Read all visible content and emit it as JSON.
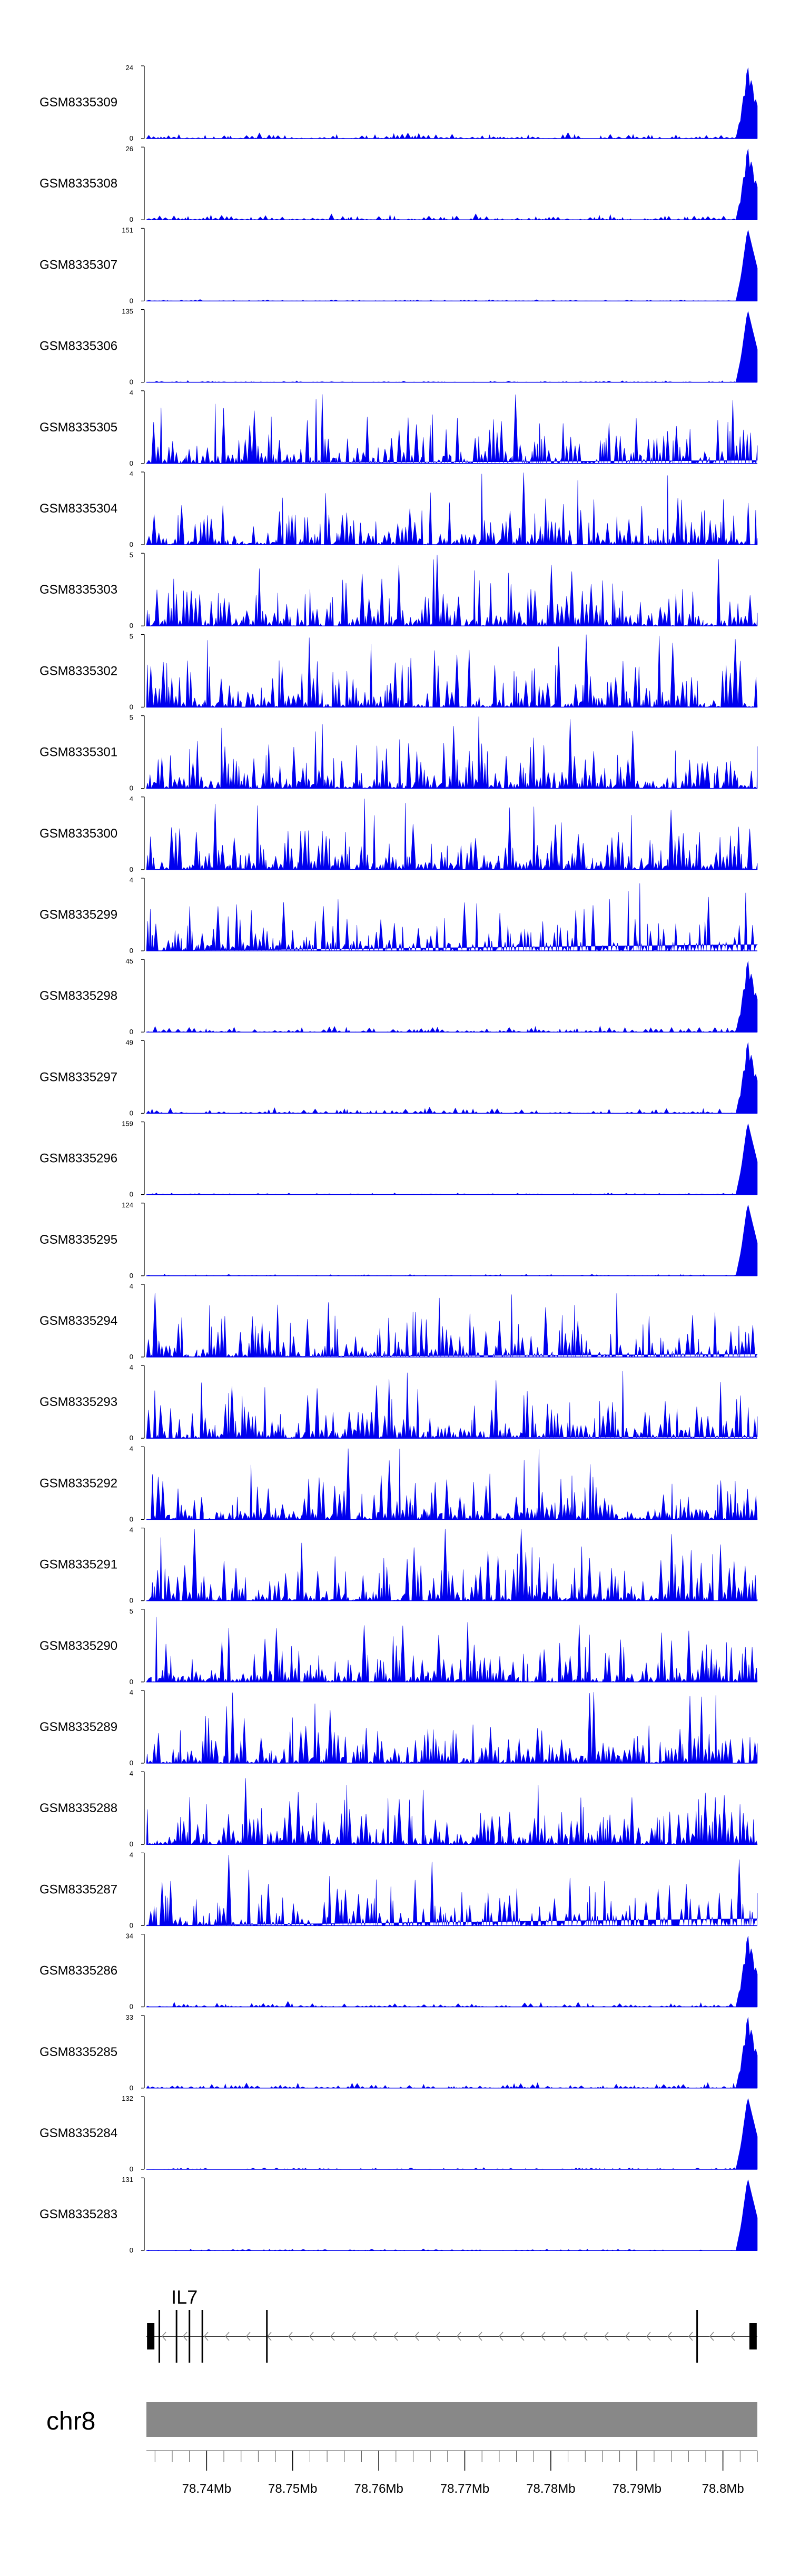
{
  "chart_data": {
    "type": "area",
    "chromosome": "chr8",
    "x_range_mb": [
      78.733,
      78.804
    ],
    "x_tick_labels": [
      "78.74Mb",
      "78.75Mb",
      "78.76Mb",
      "78.77Mb",
      "78.78Mb",
      "78.79Mb",
      "78.8Mb"
    ],
    "x_tick_values_mb": [
      78.74,
      78.75,
      78.76,
      78.77,
      78.78,
      78.79,
      78.8
    ],
    "minor_tick_step_mb": 0.002,
    "tracks": [
      {
        "name": "GSM8335309",
        "ymax_label": "24",
        "ymin_label": "0",
        "pattern": "low-peak",
        "peak_start_mb": 78.8015
      },
      {
        "name": "GSM8335308",
        "ymax_label": "26",
        "ymin_label": "0",
        "pattern": "low-peak",
        "peak_start_mb": 78.8015
      },
      {
        "name": "GSM8335307",
        "ymax_label": "151",
        "ymin_label": "0",
        "pattern": "flat-peak",
        "peak_start_mb": 78.8015
      },
      {
        "name": "GSM8335306",
        "ymax_label": "135",
        "ymin_label": "0",
        "pattern": "flat-peak",
        "peak_start_mb": 78.8015
      },
      {
        "name": "GSM8335305",
        "ymax_label": "4",
        "ymin_label": "0",
        "pattern": "dense"
      },
      {
        "name": "GSM8335304",
        "ymax_label": "4",
        "ymin_label": "0",
        "pattern": "dense"
      },
      {
        "name": "GSM8335303",
        "ymax_label": "5",
        "ymin_label": "0",
        "pattern": "dense"
      },
      {
        "name": "GSM8335302",
        "ymax_label": "5",
        "ymin_label": "0",
        "pattern": "dense"
      },
      {
        "name": "GSM8335301",
        "ymax_label": "5",
        "ymin_label": "0",
        "pattern": "dense"
      },
      {
        "name": "GSM8335300",
        "ymax_label": "4",
        "ymin_label": "0",
        "pattern": "dense"
      },
      {
        "name": "GSM8335299",
        "ymax_label": "4",
        "ymin_label": "0",
        "pattern": "dense"
      },
      {
        "name": "GSM8335298",
        "ymax_label": "45",
        "ymin_label": "0",
        "pattern": "low-peak",
        "peak_start_mb": 78.8015
      },
      {
        "name": "GSM8335297",
        "ymax_label": "49",
        "ymin_label": "0",
        "pattern": "low-peak",
        "peak_start_mb": 78.8015
      },
      {
        "name": "GSM8335296",
        "ymax_label": "159",
        "ymin_label": "0",
        "pattern": "flat-peak",
        "peak_start_mb": 78.8015
      },
      {
        "name": "GSM8335295",
        "ymax_label": "124",
        "ymin_label": "0",
        "pattern": "flat-peak",
        "peak_start_mb": 78.8015
      },
      {
        "name": "GSM8335294",
        "ymax_label": "4",
        "ymin_label": "0",
        "pattern": "dense"
      },
      {
        "name": "GSM8335293",
        "ymax_label": "4",
        "ymin_label": "0",
        "pattern": "dense"
      },
      {
        "name": "GSM8335292",
        "ymax_label": "4",
        "ymin_label": "0",
        "pattern": "dense"
      },
      {
        "name": "GSM8335291",
        "ymax_label": "4",
        "ymin_label": "0",
        "pattern": "dense"
      },
      {
        "name": "GSM8335290",
        "ymax_label": "5",
        "ymin_label": "0",
        "pattern": "dense"
      },
      {
        "name": "GSM8335289",
        "ymax_label": "4",
        "ymin_label": "0",
        "pattern": "dense"
      },
      {
        "name": "GSM8335288",
        "ymax_label": "4",
        "ymin_label": "0",
        "pattern": "dense"
      },
      {
        "name": "GSM8335287",
        "ymax_label": "4",
        "ymin_label": "0",
        "pattern": "dense"
      },
      {
        "name": "GSM8335286",
        "ymax_label": "34",
        "ymin_label": "0",
        "pattern": "low-peak",
        "peak_start_mb": 78.8015
      },
      {
        "name": "GSM8335285",
        "ymax_label": "33",
        "ymin_label": "0",
        "pattern": "low-peak",
        "peak_start_mb": 78.8015
      },
      {
        "name": "GSM8335284",
        "ymax_label": "132",
        "ymin_label": "0",
        "pattern": "flat-peak",
        "peak_start_mb": 78.8015
      },
      {
        "name": "GSM8335283",
        "ymax_label": "131",
        "ymin_label": "0",
        "pattern": "flat-peak",
        "peak_start_mb": 78.8015
      }
    ],
    "gene": {
      "label": "IL7",
      "strand": "-",
      "start_mb": 78.733,
      "end_mb": 78.804,
      "exons_mb": [
        78.7335,
        78.7345,
        78.7365,
        78.738,
        78.7395,
        78.747,
        78.797,
        78.8035
      ]
    },
    "colors": {
      "signal": "#0000ee",
      "axis": "#000000",
      "chromosome_band": "#888888",
      "gene": "#000000",
      "ticks": "#555555"
    }
  }
}
